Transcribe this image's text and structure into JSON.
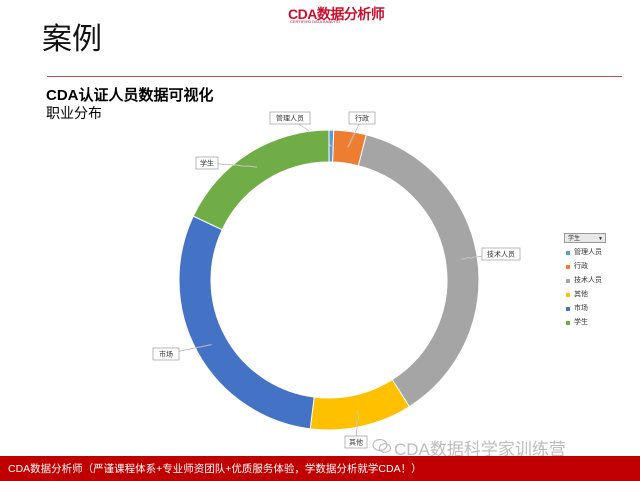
{
  "slide": {
    "title": "案例",
    "logo": "CDA数据分析师",
    "logo_sub": "CERTIFIED DATA ANALYST"
  },
  "chart_data": {
    "type": "pie",
    "variant": "donut",
    "title": "CDA认证人员数据可视化",
    "subtitle": "职业分布",
    "slices": [
      {
        "label": "管理人员",
        "value": 0.5,
        "color": "#5b9bd5"
      },
      {
        "label": "行政",
        "value": 3.5,
        "color": "#ed7d31"
      },
      {
        "label": "技术人员",
        "value": 37,
        "color": "#a5a5a5"
      },
      {
        "label": "其他",
        "value": 11,
        "color": "#ffc000"
      },
      {
        "label": "市场",
        "value": 30,
        "color": "#4472c4"
      },
      {
        "label": "学生",
        "value": 18,
        "color": "#70ad47"
      }
    ],
    "legend_position": "right",
    "filter_label": "学生"
  },
  "footer": {
    "text": "CDA数据分析师（严谨课程体系+专业师资团队+优质服务体验，学数据分析就学CDA！）"
  },
  "watermark": {
    "text": "CDA数据科学家训练营"
  }
}
